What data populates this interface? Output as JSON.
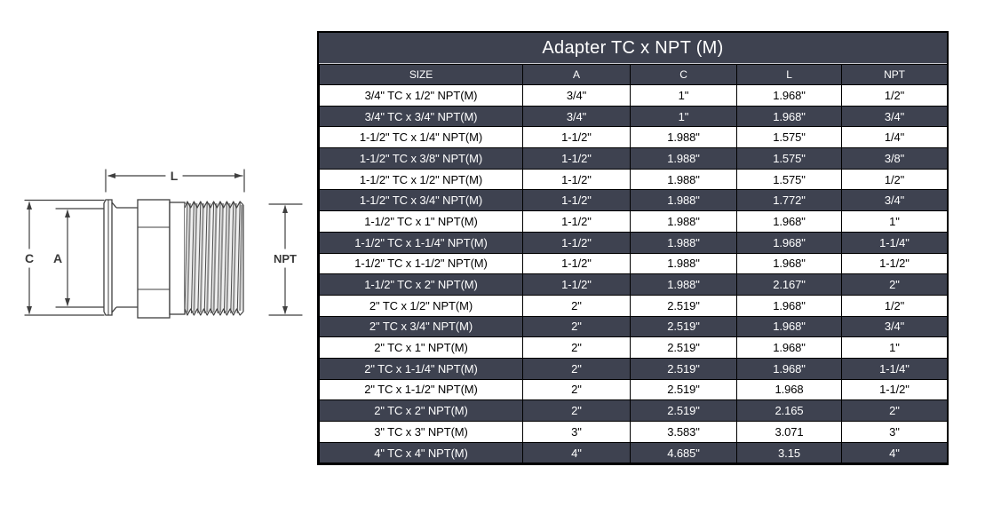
{
  "title": "Adapter TC x NPT (M)",
  "table": {
    "columns": [
      "SIZE",
      "A",
      "C",
      "L",
      "NPT"
    ],
    "rows": [
      [
        "3/4\" TC x 1/2\" NPT(M)",
        "3/4\"",
        "1\"",
        "1.968\"",
        "1/2\""
      ],
      [
        "3/4\" TC x 3/4\" NPT(M)",
        "3/4\"",
        "1\"",
        "1.968\"",
        "3/4\""
      ],
      [
        "1-1/2\" TC x 1/4\" NPT(M)",
        "1-1/2\"",
        "1.988\"",
        "1.575\"",
        "1/4\""
      ],
      [
        "1-1/2\" TC x 3/8\" NPT(M)",
        "1-1/2\"",
        "1.988\"",
        "1.575\"",
        "3/8\""
      ],
      [
        "1-1/2\" TC x 1/2\" NPT(M)",
        "1-1/2\"",
        "1.988\"",
        "1.575\"",
        "1/2\""
      ],
      [
        "1-1/2\" TC x 3/4\" NPT(M)",
        "1-1/2\"",
        "1.988\"",
        "1.772\"",
        "3/4\""
      ],
      [
        "1-1/2\" TC x 1\" NPT(M)",
        "1-1/2\"",
        "1.988\"",
        "1.968\"",
        "1\""
      ],
      [
        "1-1/2\" TC x 1-1/4\" NPT(M)",
        "1-1/2\"",
        "1.988\"",
        "1.968\"",
        "1-1/4\""
      ],
      [
        "1-1/2\" TC x 1-1/2\" NPT(M)",
        "1-1/2\"",
        "1.988\"",
        "1.968\"",
        "1-1/2\""
      ],
      [
        "1-1/2\" TC x 2\" NPT(M)",
        "1-1/2\"",
        "1.988\"",
        "2.167\"",
        "2\""
      ],
      [
        "2\" TC x 1/2\" NPT(M)",
        "2\"",
        "2.519\"",
        "1.968\"",
        "1/2\""
      ],
      [
        "2\" TC x 3/4\" NPT(M)",
        "2\"",
        "2.519\"",
        "1.968\"",
        "3/4\""
      ],
      [
        "2\" TC x 1\" NPT(M)",
        "2\"",
        "2.519\"",
        "1.968\"",
        "1\""
      ],
      [
        "2\" TC x 1-1/4\" NPT(M)",
        "2\"",
        "2.519\"",
        "1.968\"",
        "1-1/4\""
      ],
      [
        "2\" TC x 1-1/2\" NPT(M)",
        "2\"",
        "2.519\"",
        "1.968",
        "1-1/2\""
      ],
      [
        "2\" TC x 2\" NPT(M)",
        "2\"",
        "2.519\"",
        "2.165",
        "2\""
      ],
      [
        "3\" TC x 3\" NPT(M)",
        "3\"",
        "3.583\"",
        "3.071",
        "3\""
      ],
      [
        "4\" TC x 4\" NPT(M)",
        "4\"",
        "4.685\"",
        "3.15",
        "4\""
      ]
    ]
  },
  "diagram": {
    "labels": {
      "length": "L",
      "clamp_od": "C",
      "inner": "A",
      "thread": "NPT"
    }
  },
  "colors": {
    "dark": "#3e4250",
    "row_light": "#ffffff",
    "border": "#000000",
    "text_light": "#ffffff",
    "text_dark": "#000000"
  }
}
